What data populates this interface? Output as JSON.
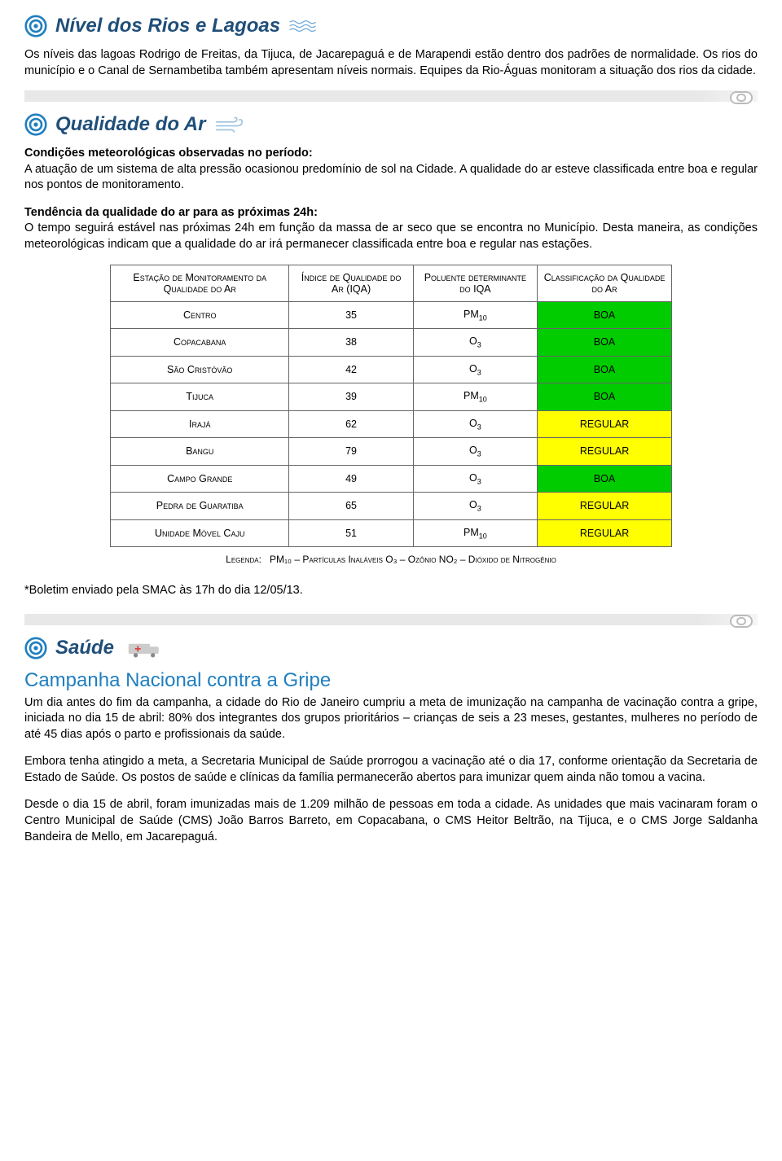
{
  "colors": {
    "header": "#1f4e79",
    "link": "#1f7fbf",
    "boa": "#00cc00",
    "regular": "#ffff00"
  },
  "sections": {
    "rivers": {
      "title": "Nível dos Rios e Lagoas",
      "body": "Os níveis das lagoas Rodrigo de Freitas, da Tijuca, de Jacarepaguá e de Marapendi estão dentro dos padrões de normalidade. Os rios do município e o Canal de Sernambetiba também apresentam níveis normais. Equipes da Rio-Águas monitoram a situação dos rios da cidade."
    },
    "air": {
      "title": "Qualidade do Ar",
      "cond_h": "Condições meteorológicas observadas no período:",
      "cond_b": "A atuação de um sistema de alta pressão ocasionou predomínio de sol na Cidade. A qualidade do ar esteve classificada entre boa e regular nos pontos de monitoramento.",
      "tend_h": "Tendência da qualidade do ar para as próximas 24h:",
      "tend_b": "O tempo seguirá estável nas próximas 24h em função da massa de ar seco que se encontra no Município. Desta maneira, as condições meteorológicas indicam que a qualidade do ar irá permanecer classificada entre boa e regular nas estações.",
      "table": {
        "headers": [
          "Estação de Monitoramento da Qualidade do Ar",
          "Índice de Qualidade do Ar (IQA)",
          "Poluente determinante do IQA",
          "Classificação da Qualidade do Ar"
        ],
        "rows": [
          {
            "station": "Centro",
            "iqa": "35",
            "pol": "PM",
            "polsub": "10",
            "cls": "BOA",
            "clsClass": "boa"
          },
          {
            "station": "Copacabana",
            "iqa": "38",
            "pol": "O",
            "polsub": "3",
            "cls": "BOA",
            "clsClass": "boa"
          },
          {
            "station": "São Cristóvão",
            "iqa": "42",
            "pol": "O",
            "polsub": "3",
            "cls": "BOA",
            "clsClass": "boa"
          },
          {
            "station": "Tijuca",
            "iqa": "39",
            "pol": "PM",
            "polsub": "10",
            "cls": "BOA",
            "clsClass": "boa"
          },
          {
            "station": "Irajá",
            "iqa": "62",
            "pol": "O",
            "polsub": "3",
            "cls": "REGULAR",
            "clsClass": "regular"
          },
          {
            "station": "Bangu",
            "iqa": "79",
            "pol": "O",
            "polsub": "3",
            "cls": "REGULAR",
            "clsClass": "regular"
          },
          {
            "station": "Campo Grande",
            "iqa": "49",
            "pol": "O",
            "polsub": "3",
            "cls": "BOA",
            "clsClass": "boa"
          },
          {
            "station": "Pedra de Guaratiba",
            "iqa": "65",
            "pol": "O",
            "polsub": "3",
            "cls": "REGULAR",
            "clsClass": "regular"
          },
          {
            "station": "Unidade Móvel Caju",
            "iqa": "51",
            "pol": "PM",
            "polsub": "10",
            "cls": "REGULAR",
            "clsClass": "regular"
          }
        ],
        "legend_label": "Legenda:",
        "legend_items": "PM₁₀ – Partículas Inaláveis    O₃ – Ozônio    NO₂ – Dióxido de Nitrogênio"
      },
      "footnote": "*Boletim enviado pela SMAC às 17h do dia 12/05/13."
    },
    "health": {
      "title": "Saúde",
      "campaign_title": "Campanha Nacional contra a Gripe",
      "p1": "Um dia antes do fim da campanha, a cidade do Rio de Janeiro cumpriu a meta de imunização na campanha de vacinação contra a gripe, iniciada no dia 15 de abril: 80% dos integrantes dos grupos prioritários – crianças de seis a 23 meses, gestantes, mulheres no período de até 45 dias após o parto e profissionais da saúde.",
      "p2": "Embora tenha atingido a meta, a Secretaria Municipal de Saúde prorrogou a vacinação até o dia 17, conforme orientação da Secretaria de Estado de Saúde. Os postos de saúde e clínicas da família permanecerão abertos para imunizar quem ainda não tomou a vacina.",
      "p3": "Desde o dia 15 de abril, foram imunizadas mais de 1.209 milhão de pessoas em toda a cidade. As unidades que mais vacinaram foram o Centro Municipal de Saúde (CMS) João Barros Barreto, em Copacabana, o CMS Heitor Beltrão, na Tijuca, e o CMS Jorge Saldanha Bandeira de Mello, em Jacarepaguá."
    }
  }
}
